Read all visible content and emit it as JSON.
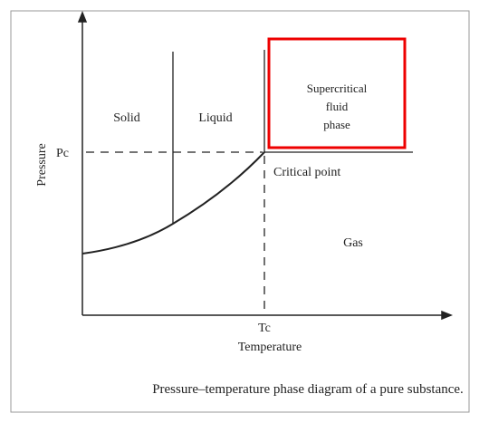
{
  "axes": {
    "y_label": "Pressure",
    "x_label": "Temperature",
    "y_marker": "Pc",
    "x_marker": "Tc"
  },
  "regions": {
    "solid": "Solid",
    "liquid": "Liquid",
    "supercritical": [
      "Supercritical",
      "fluid",
      "phase"
    ],
    "gas": "Gas"
  },
  "critical_point": "Critical point",
  "caption": "Pressure–temperature phase diagram of a pure substance."
}
